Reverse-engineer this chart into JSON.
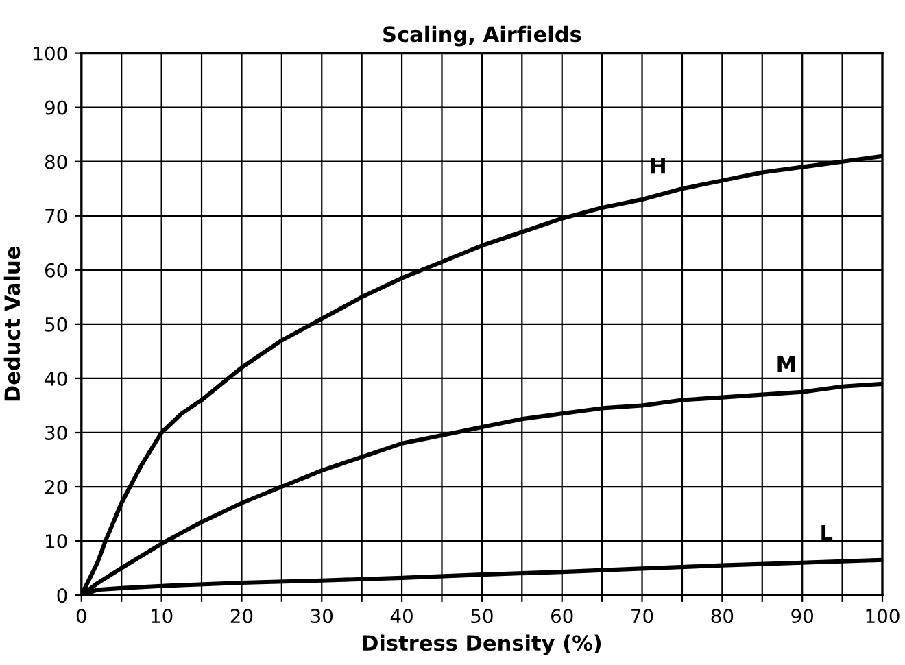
{
  "chart_data": {
    "type": "line",
    "title": "Scaling, Airfields",
    "xlabel": "Distress Density (%)",
    "ylabel": "Deduct Value",
    "series": [
      {
        "name": "H",
        "color": "#000000",
        "x": [
          0,
          1,
          2,
          3,
          5,
          7.5,
          10,
          12.5,
          15,
          20,
          25,
          30,
          35,
          40,
          45,
          50,
          55,
          60,
          65,
          70,
          75,
          80,
          85,
          90,
          95,
          100
        ],
        "values": [
          0,
          3,
          6,
          10,
          17,
          24,
          30,
          33.5,
          36,
          42,
          47,
          51,
          55,
          58.5,
          61.5,
          64.5,
          67,
          69.5,
          71.5,
          73,
          75,
          76.5,
          78,
          79,
          80,
          81
        ]
      },
      {
        "name": "M",
        "color": "#000000",
        "x": [
          0,
          2,
          5,
          10,
          15,
          20,
          25,
          30,
          35,
          40,
          45,
          50,
          55,
          60,
          65,
          70,
          75,
          80,
          85,
          90,
          95,
          100
        ],
        "values": [
          0,
          2.2,
          5,
          9.5,
          13.5,
          17,
          20,
          23,
          25.5,
          28,
          29.5,
          31,
          32.5,
          33.5,
          34.5,
          35,
          36,
          36.5,
          37,
          37.5,
          38.5,
          39
        ]
      },
      {
        "name": "L",
        "color": "#000000",
        "x": [
          0,
          2,
          5,
          10,
          20,
          30,
          40,
          50,
          60,
          70,
          80,
          90,
          100
        ],
        "values": [
          0,
          1,
          1.3,
          1.7,
          2.3,
          2.7,
          3.2,
          3.8,
          4.3,
          4.9,
          5.5,
          6,
          6.5
        ]
      }
    ],
    "xlim": [
      0,
      100
    ],
    "ylim": [
      0,
      100
    ],
    "xticks": [
      0,
      {
        "value": 5,
        "label": null
      },
      10,
      {
        "value": 15,
        "label": null
      },
      20,
      {
        "value": 25,
        "label": null
      },
      30,
      {
        "value": 35,
        "label": null
      },
      40,
      {
        "value": 45,
        "label": null
      },
      50,
      {
        "value": 55,
        "label": null
      },
      60,
      {
        "value": 65,
        "label": null
      },
      70,
      {
        "value": 75,
        "label": null
      },
      80,
      {
        "value": 85,
        "label": null
      },
      90,
      {
        "value": 95,
        "label": null
      },
      100
    ],
    "yticks": [
      0,
      10,
      20,
      30,
      40,
      50,
      60,
      70,
      80,
      90,
      100
    ],
    "grid": true,
    "marker": "none",
    "line_style": "solid"
  }
}
